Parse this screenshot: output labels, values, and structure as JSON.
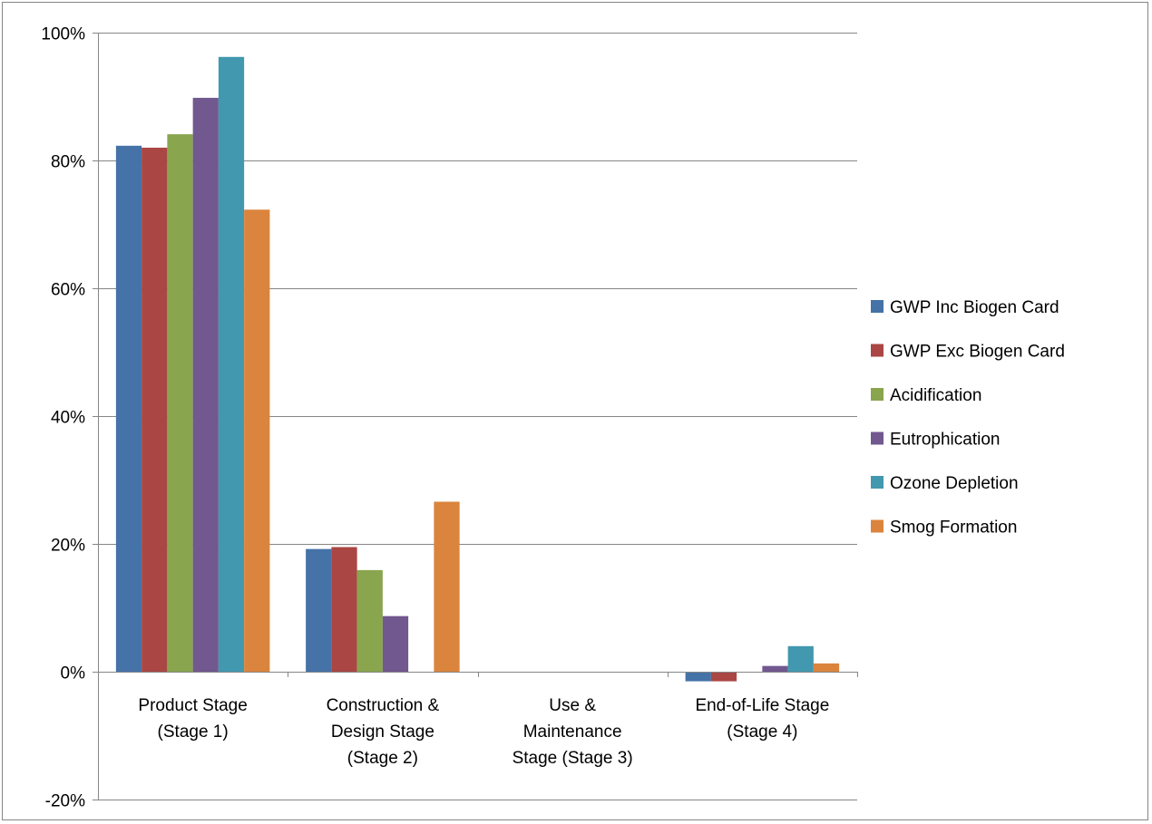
{
  "chart_data": {
    "type": "bar",
    "title": "",
    "xlabel": "",
    "ylabel": "",
    "categories": [
      [
        "Product Stage",
        "(Stage 1)"
      ],
      [
        "Construction &",
        "Design Stage",
        "(Stage 2)"
      ],
      [
        "Use &",
        "Maintenance",
        "Stage (Stage 3)"
      ],
      [
        "End-of-Life Stage",
        "(Stage 4)"
      ]
    ],
    "series": [
      {
        "name": "GWP Inc Biogen Card",
        "color": "#4572a7",
        "values": [
          82.3,
          19.2,
          0,
          -1.5
        ]
      },
      {
        "name": "GWP Exc Biogen Card",
        "color": "#aa4643",
        "values": [
          82.0,
          19.5,
          0,
          -1.5
        ]
      },
      {
        "name": "Acidification",
        "color": "#89a54e",
        "values": [
          84.1,
          15.9,
          0,
          0
        ]
      },
      {
        "name": "Eutrophication",
        "color": "#71588f",
        "values": [
          89.8,
          8.7,
          0,
          0.9
        ]
      },
      {
        "name": "Ozone Depletion",
        "color": "#4198af",
        "values": [
          96.2,
          0,
          0,
          4.0
        ]
      },
      {
        "name": "Smog Formation",
        "color": "#db843d",
        "values": [
          72.3,
          26.6,
          0,
          1.3
        ]
      }
    ],
    "ylim": [
      -20,
      100
    ],
    "yticks": [
      -20,
      0,
      20,
      40,
      60,
      80,
      100
    ],
    "ytick_labels": [
      "-20%",
      "0%",
      "20%",
      "40%",
      "60%",
      "80%",
      "100%"
    ],
    "grid": true,
    "legend_position": "right"
  }
}
